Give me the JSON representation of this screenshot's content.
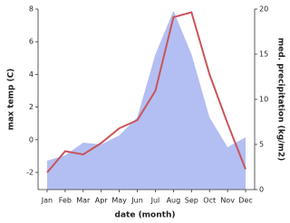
{
  "chart_data": {
    "type": "line",
    "xlabel": "date (month)",
    "ylabel": "max temp (C)",
    "y2label": "med. precipitation (kg/m2)",
    "categories": [
      "Jan",
      "Feb",
      "Mar",
      "Apr",
      "May",
      "Jun",
      "Jul",
      "Aug",
      "Sep",
      "Oct",
      "Nov",
      "Dec"
    ],
    "series": [
      {
        "name": "med. precipitation",
        "type": "area",
        "axis": "y2",
        "color": "#b3bff2",
        "values": [
          3.2,
          3.8,
          5.2,
          5.0,
          6.0,
          8.0,
          15.0,
          19.8,
          15.0,
          8.0,
          4.7,
          5.8
        ]
      },
      {
        "name": "max temp",
        "type": "line",
        "color": "#c9555a",
        "values": [
          -2.0,
          -0.7,
          -0.9,
          -0.2,
          0.7,
          1.2,
          3.0,
          7.5,
          7.8,
          4.0,
          1.0,
          -1.8
        ]
      }
    ],
    "ylim": [
      -3.05,
      8
    ],
    "yticks": [
      -2,
      0,
      2,
      4,
      6,
      8
    ],
    "y2lim": [
      0,
      20
    ],
    "y2ticks": [
      0,
      5,
      10,
      15,
      20
    ]
  }
}
